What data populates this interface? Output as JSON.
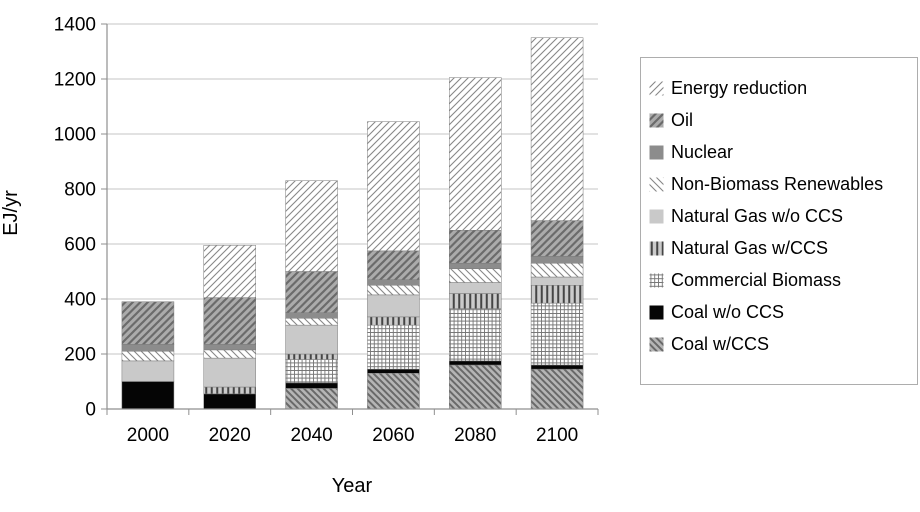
{
  "chart_data": {
    "type": "bar",
    "stacked": true,
    "title": "",
    "xlabel": "Year",
    "ylabel": "EJ/yr",
    "ylim": [
      0,
      1400
    ],
    "ytick_interval": 200,
    "yticks": [
      0,
      200,
      400,
      600,
      800,
      1000,
      1200,
      1400
    ],
    "grid": "horizontal",
    "legend_position": "right",
    "categories": [
      "2000",
      "2020",
      "2040",
      "2060",
      "2080",
      "2100"
    ],
    "series": [
      {
        "name": "Coal w/CCS",
        "pattern": "coal_ccs",
        "values": [
          0,
          0,
          75,
          130,
          160,
          145
        ]
      },
      {
        "name": "Coal w/o CCS",
        "pattern": "coal",
        "values": [
          100,
          55,
          20,
          15,
          15,
          15
        ]
      },
      {
        "name": "Commercial Biomass",
        "pattern": "biomass",
        "values": [
          0,
          0,
          85,
          160,
          190,
          225
        ]
      },
      {
        "name": "Natural Gas w/CCS",
        "pattern": "gas_ccs",
        "values": [
          0,
          25,
          20,
          30,
          55,
          65
        ]
      },
      {
        "name": "Natural Gas w/o CCS",
        "pattern": "gas",
        "values": [
          75,
          105,
          105,
          80,
          40,
          30
        ]
      },
      {
        "name": "Non-Biomass Renewables",
        "pattern": "renewables",
        "values": [
          35,
          30,
          25,
          35,
          50,
          50
        ]
      },
      {
        "name": "Nuclear",
        "pattern": "nuclear",
        "values": [
          25,
          20,
          20,
          20,
          20,
          25
        ]
      },
      {
        "name": "Oil",
        "pattern": "oil",
        "values": [
          155,
          170,
          150,
          105,
          120,
          130
        ]
      },
      {
        "name": "Energy reduction",
        "pattern": "energy_red",
        "values": [
          0,
          190,
          330,
          470,
          555,
          665
        ]
      }
    ],
    "legend_order": "top_of_stack_first"
  },
  "patterns": {
    "energy_red": {
      "type": "diag-fwd",
      "bg": "#ffffff",
      "fg": "#878787",
      "lw": 1.1,
      "sp": 7
    },
    "oil": {
      "type": "diag-fwd",
      "bg": "#ababab",
      "fg": "#6b6b6b",
      "lw": 2.2,
      "sp": 7.5
    },
    "nuclear": {
      "type": "solid",
      "bg": "#8c8c8c"
    },
    "renewables": {
      "type": "diag-back",
      "bg": "#ffffff",
      "fg": "#878787",
      "lw": 1.1,
      "sp": 7
    },
    "gas": {
      "type": "solid",
      "bg": "#c9c9c9"
    },
    "gas_ccs": {
      "type": "vertical",
      "bg": "#cbcbcb",
      "fg": "#454545",
      "lw": 2,
      "sp": 5.5
    },
    "biomass": {
      "type": "cross",
      "bg": "#ffffff",
      "fg": "#757575",
      "lw": 0.9,
      "sp": 3.8
    },
    "coal": {
      "type": "solid",
      "bg": "#050505"
    },
    "coal_ccs": {
      "type": "diag-back",
      "bg": "#b5b5b5",
      "fg": "#696969",
      "lw": 2,
      "sp": 6.5
    }
  },
  "colors": {
    "background": "#ffffff",
    "gridline": "#c6c6c6",
    "axis": "#8f8f8f",
    "text": "#000000",
    "segment_border": "#7a7a7a",
    "legend_border": "#adadad"
  }
}
